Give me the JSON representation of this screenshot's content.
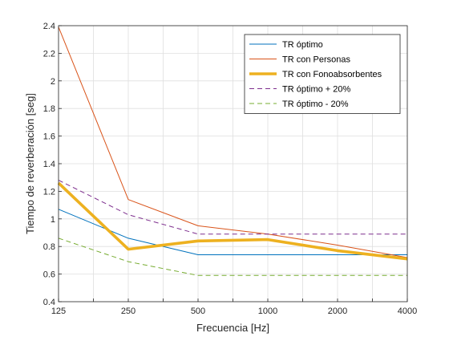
{
  "chart_data": {
    "type": "line",
    "title": "",
    "xlabel": "Frecuencia [Hz]",
    "ylabel": "Tiempo de reverberación [seg]",
    "x_scale": "log2",
    "x_ticks": [
      125,
      250,
      500,
      1000,
      2000,
      4000
    ],
    "x_tick_labels": [
      "125",
      "250",
      "500",
      "1000",
      "2000",
      "4000"
    ],
    "ylim": [
      0.4,
      2.4
    ],
    "y_ticks": [
      0.4,
      0.6,
      0.8,
      1.0,
      1.2,
      1.4,
      1.6,
      1.8,
      2.0,
      2.2,
      2.4
    ],
    "y_tick_labels": [
      "0.4",
      "0.6",
      "0.8",
      "1",
      "1.2",
      "1.4",
      "1.6",
      "1.8",
      "2",
      "2.2",
      "2.4"
    ],
    "grid": true,
    "legend_position": "top-right",
    "series": [
      {
        "name": "TR óptimo",
        "color": "#0072BD",
        "style": "solid",
        "width": "thin",
        "x": [
          125,
          250,
          500,
          1000,
          2000,
          4000
        ],
        "values": [
          1.07,
          0.86,
          0.74,
          0.74,
          0.74,
          0.74
        ]
      },
      {
        "name": "TR con Personas",
        "color": "#D95319",
        "style": "solid",
        "width": "thin",
        "x": [
          125,
          250,
          500,
          1000,
          2000,
          4000
        ],
        "values": [
          2.39,
          1.14,
          0.95,
          0.89,
          0.81,
          0.72
        ]
      },
      {
        "name": "TR con Fonoabsorbentes",
        "color": "#EDB120",
        "style": "solid",
        "width": "thick",
        "x": [
          125,
          250,
          500,
          1000,
          2000,
          4000
        ],
        "values": [
          1.26,
          0.78,
          0.84,
          0.85,
          0.77,
          0.71
        ]
      },
      {
        "name": "TR óptimo + 20%",
        "color": "#7E2F8E",
        "style": "dashed",
        "width": "thin",
        "x": [
          125,
          250,
          500,
          1000,
          2000,
          4000
        ],
        "values": [
          1.28,
          1.03,
          0.89,
          0.89,
          0.89,
          0.89
        ]
      },
      {
        "name": "TR óptimo - 20%",
        "color": "#77AC30",
        "style": "dashed",
        "width": "thin",
        "x": [
          125,
          250,
          500,
          1000,
          2000,
          4000
        ],
        "values": [
          0.86,
          0.69,
          0.59,
          0.59,
          0.59,
          0.59
        ]
      }
    ]
  }
}
